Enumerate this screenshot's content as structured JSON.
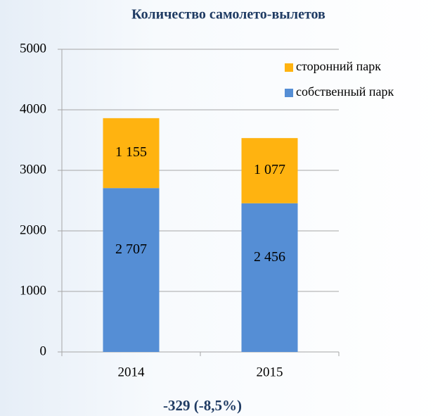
{
  "chart_data": {
    "type": "stacked_bar",
    "title": "Количество самолето-вылетов",
    "annotation": "-329 (-8,5%)",
    "categories": [
      "2014",
      "2015"
    ],
    "series": [
      {
        "name": "собственный парк",
        "color": "#558ed5",
        "values": [
          2707,
          2456
        ],
        "value_labels": [
          "2 707",
          "2 456"
        ]
      },
      {
        "name": "сторонний парк",
        "color": "#ffb310",
        "values": [
          1155,
          1077
        ],
        "value_labels": [
          "1 155",
          "1 077"
        ]
      }
    ],
    "ylim": [
      0,
      5000
    ],
    "yticks": [
      0,
      1000,
      2000,
      3000,
      4000,
      5000
    ],
    "grid": true,
    "legend": "top-right"
  }
}
